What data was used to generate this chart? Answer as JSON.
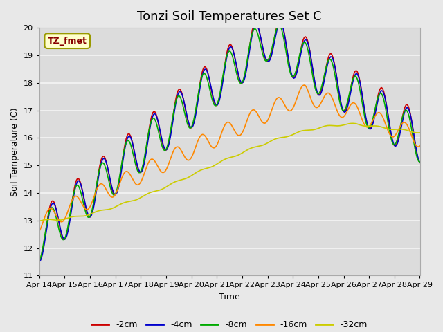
{
  "title": "Tonzi Soil Temperatures Set C",
  "xlabel": "Time",
  "ylabel": "Soil Temperature (C)",
  "ylim": [
    11.0,
    20.0
  ],
  "yticks": [
    11.0,
    12.0,
    13.0,
    14.0,
    15.0,
    16.0,
    17.0,
    18.0,
    19.0,
    20.0
  ],
  "xtick_labels": [
    "Apr 14",
    "Apr 15",
    "Apr 16",
    "Apr 17",
    "Apr 18",
    "Apr 19",
    "Apr 20",
    "Apr 21",
    "Apr 22",
    "Apr 23",
    "Apr 24",
    "Apr 25",
    "Apr 26",
    "Apr 27",
    "Apr 28",
    "Apr 29"
  ],
  "series_colors": [
    "#cc0000",
    "#0000cc",
    "#00aa00",
    "#ff8800",
    "#cccc00"
  ],
  "series_labels": [
    "-2cm",
    "-4cm",
    "-8cm",
    "-16cm",
    "-32cm"
  ],
  "annotation_text": "TZ_fmet",
  "annotation_bg": "#ffffcc",
  "annotation_border": "#999900",
  "fig_bg": "#e8e8e8",
  "plot_bg": "#dcdcdc",
  "grid_color": "#f5f5f5",
  "title_fontsize": 13,
  "label_fontsize": 9,
  "tick_fontsize": 8,
  "line_width": 1.2,
  "n_points": 360,
  "days": 15
}
